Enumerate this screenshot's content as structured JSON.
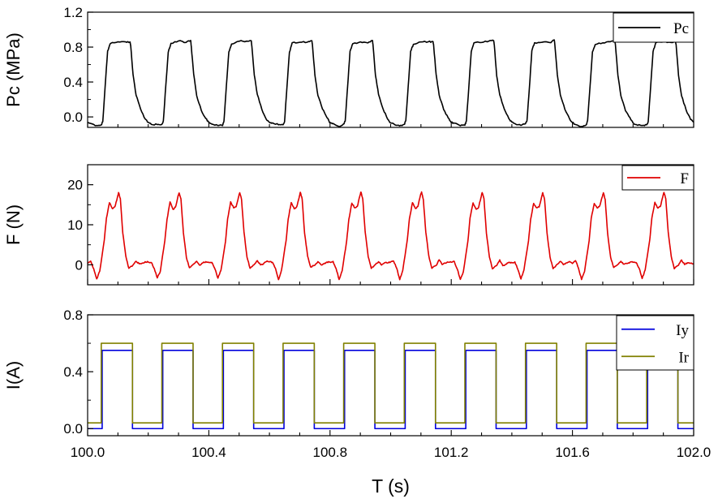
{
  "chart_data": [
    {
      "type": "line",
      "id": "pc",
      "ylabel": "Pc (MPa)",
      "ylim": [
        -0.12,
        1.2
      ],
      "yticks": [
        0.0,
        0.4,
        0.8,
        1.2
      ],
      "ytick_labels": [
        "0.0",
        "0.4",
        "0.8",
        "1.2"
      ],
      "xlim": [
        100.0,
        102.0
      ],
      "legend": "top-right",
      "series": [
        {
          "name": "Pc",
          "color": "#000000",
          "period": 0.2,
          "x_start": 100.0,
          "x_end": 102.0,
          "pattern": [
            [
              0.0,
              -0.06
            ],
            [
              0.01,
              -0.08
            ],
            [
              0.03,
              -0.1
            ],
            [
              0.045,
              -0.09
            ],
            [
              0.05,
              -0.05
            ],
            [
              0.058,
              0.35
            ],
            [
              0.066,
              0.75
            ],
            [
              0.075,
              0.84
            ],
            [
              0.1,
              0.86
            ],
            [
              0.125,
              0.86
            ],
            [
              0.14,
              0.87
            ],
            [
              0.142,
              0.82
            ],
            [
              0.15,
              0.48
            ],
            [
              0.16,
              0.25
            ],
            [
              0.175,
              0.08
            ],
            [
              0.19,
              -0.02
            ],
            [
              0.2,
              -0.06
            ]
          ]
        }
      ]
    },
    {
      "type": "line",
      "id": "force",
      "ylabel": "F (N)",
      "ylim": [
        -5,
        25
      ],
      "yticks": [
        0,
        10,
        20
      ],
      "ytick_labels": [
        "0",
        "10",
        "20"
      ],
      "xlim": [
        100.0,
        102.0
      ],
      "legend": "top-right",
      "series": [
        {
          "name": "F",
          "color": "#e00000",
          "period": 0.2,
          "x_start": 100.0,
          "x_end": 102.0,
          "pattern": [
            [
              0.0,
              0.5
            ],
            [
              0.01,
              0.8
            ],
            [
              0.02,
              -1.0
            ],
            [
              0.03,
              -3.5
            ],
            [
              0.04,
              -1.5
            ],
            [
              0.055,
              6.0
            ],
            [
              0.062,
              11.5
            ],
            [
              0.072,
              15.5
            ],
            [
              0.082,
              14.0
            ],
            [
              0.09,
              14.5
            ],
            [
              0.098,
              17.0
            ],
            [
              0.102,
              18.0
            ],
            [
              0.108,
              16.5
            ],
            [
              0.116,
              8.0
            ],
            [
              0.126,
              2.0
            ],
            [
              0.136,
              -0.8
            ],
            [
              0.15,
              0.0
            ],
            [
              0.16,
              1.0
            ],
            [
              0.17,
              0.0
            ],
            [
              0.18,
              0.3
            ],
            [
              0.19,
              0.6
            ],
            [
              0.2,
              0.5
            ]
          ]
        }
      ]
    },
    {
      "type": "line",
      "id": "current",
      "ylabel": "I(A)",
      "xlabel": "T (s)",
      "ylim": [
        -0.05,
        0.8
      ],
      "yticks": [
        0.0,
        0.4,
        0.8
      ],
      "ytick_labels": [
        "0.0",
        "0.4",
        "0.8"
      ],
      "xlim": [
        100.0,
        102.0
      ],
      "xticks": [
        100.0,
        100.4,
        100.8,
        101.2,
        101.6,
        102.0
      ],
      "xtick_labels": [
        "100.0",
        "100.4",
        "100.8",
        "101.2",
        "101.6",
        "102.0"
      ],
      "legend": "top-right",
      "series": [
        {
          "name": "Iy",
          "color": "#0000dd",
          "period": 0.2,
          "x_start": 100.0,
          "x_end": 102.0,
          "low": 0.0,
          "high": 0.55,
          "on_start": 0.048,
          "on_end": 0.148
        },
        {
          "name": "Ir",
          "color": "#808000",
          "period": 0.2,
          "x_start": 100.0,
          "x_end": 102.0,
          "low": 0.04,
          "high": 0.6,
          "on_start": 0.045,
          "on_end": 0.148
        }
      ]
    }
  ]
}
